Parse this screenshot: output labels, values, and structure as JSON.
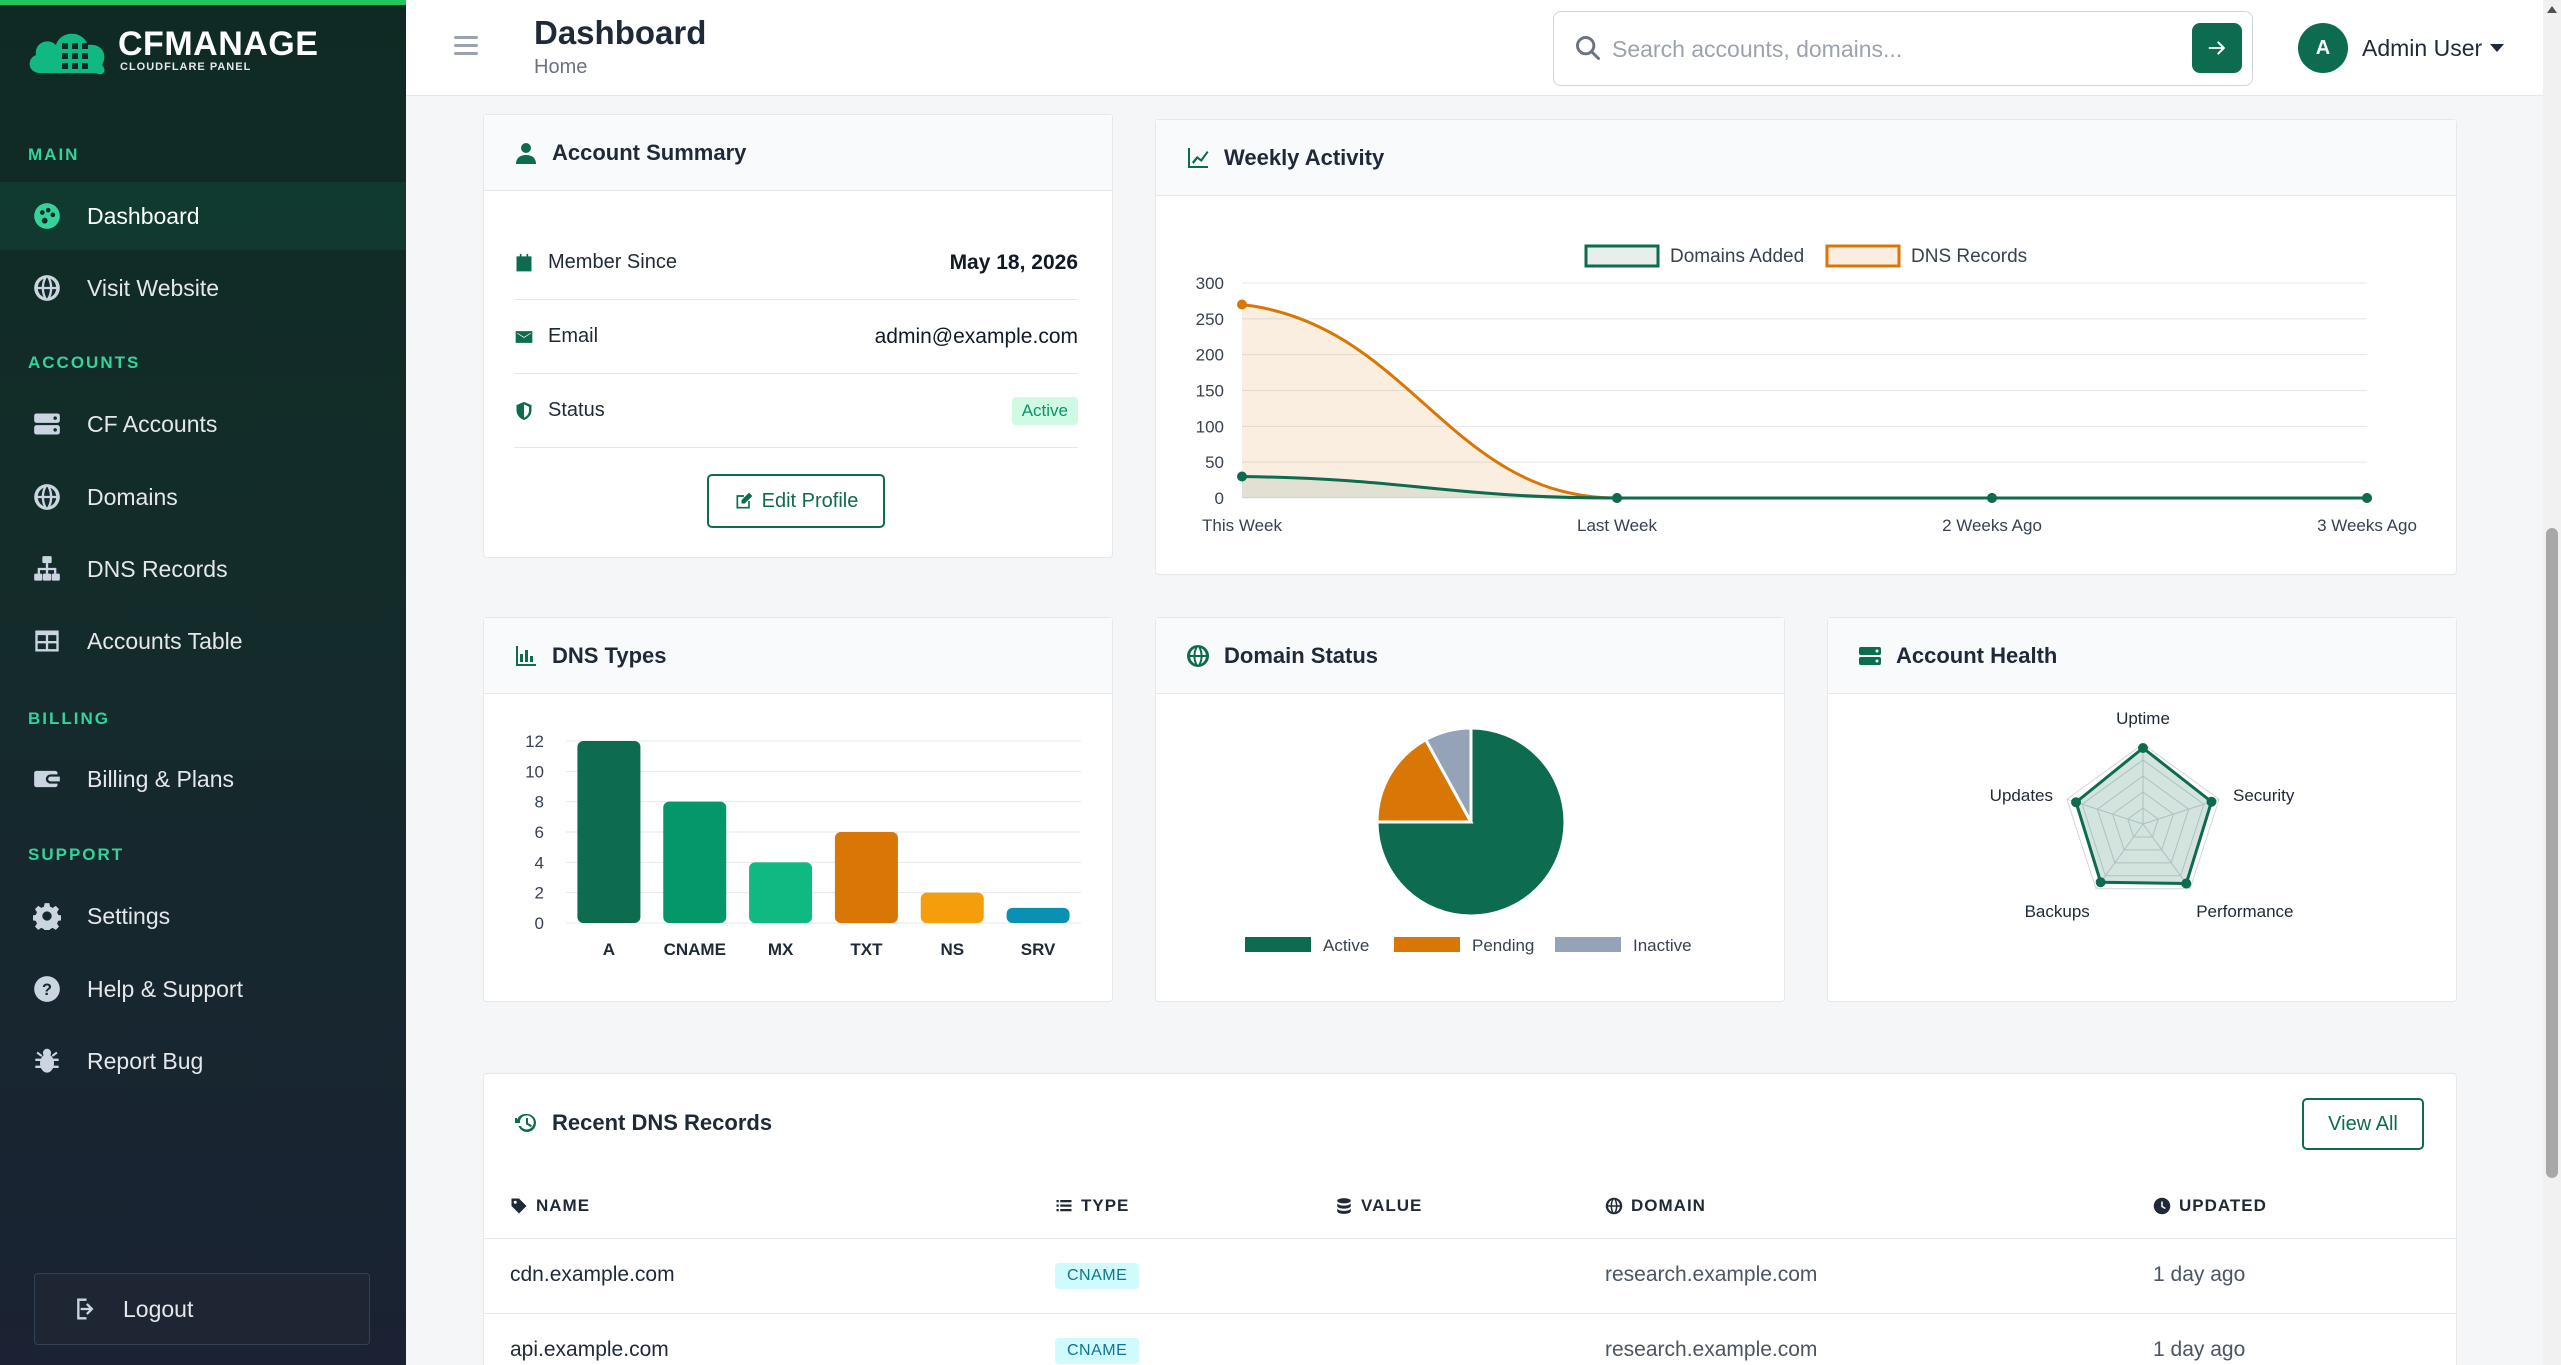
{
  "brand": {
    "title": "CFMANAGE",
    "subtitle": "CLOUDFLARE PANEL"
  },
  "sidebar": {
    "sections": [
      {
        "label": "MAIN"
      },
      {
        "label": "ACCOUNTS"
      },
      {
        "label": "BILLING"
      },
      {
        "label": "SUPPORT"
      }
    ],
    "items": [
      {
        "label": "Dashboard",
        "icon": "palette-icon",
        "active": true
      },
      {
        "label": "Visit Website",
        "icon": "globe-icon"
      },
      {
        "label": "CF Accounts",
        "icon": "server-icon"
      },
      {
        "label": "Domains",
        "icon": "globe-icon"
      },
      {
        "label": "DNS Records",
        "icon": "sitemap-icon"
      },
      {
        "label": "Accounts Table",
        "icon": "table-icon"
      },
      {
        "label": "Billing & Plans",
        "icon": "wallet-icon"
      },
      {
        "label": "Settings",
        "icon": "gear-icon"
      },
      {
        "label": "Help & Support",
        "icon": "question-icon"
      },
      {
        "label": "Report Bug",
        "icon": "bug-icon"
      }
    ],
    "logout": "Logout"
  },
  "header": {
    "title": "Dashboard",
    "breadcrumb": "Home",
    "search_placeholder": "Search accounts, domains...",
    "user_initial": "A",
    "user_name": "Admin User"
  },
  "account_summary": {
    "title": "Account Summary",
    "member_since_label": "Member Since",
    "member_since": "May 18, 2026",
    "email_label": "Email",
    "email": "admin@example.com",
    "status_label": "Status",
    "status": "Active",
    "edit_button": "Edit Profile"
  },
  "weekly_activity": {
    "title": "Weekly Activity"
  },
  "dns_types": {
    "title": "DNS Types"
  },
  "domain_status": {
    "title": "Domain Status"
  },
  "account_health": {
    "title": "Account Health"
  },
  "chart_data": [
    {
      "type": "line",
      "categories": [
        "This Week",
        "Last Week",
        "2 Weeks Ago",
        "3 Weeks Ago"
      ],
      "series": [
        {
          "name": "Domains Added",
          "values": [
            30,
            0,
            0,
            0
          ],
          "color": "#0d6b4f"
        },
        {
          "name": "DNS Records",
          "values": [
            270,
            0,
            0,
            0
          ],
          "color": "#d97706"
        }
      ],
      "yticks": [
        0,
        50,
        100,
        150,
        200,
        250,
        300
      ],
      "ylim": [
        0,
        300
      ],
      "legend": "top"
    },
    {
      "type": "bar",
      "categories": [
        "A",
        "CNAME",
        "MX",
        "TXT",
        "NS",
        "SRV"
      ],
      "values": [
        12,
        8,
        4,
        6,
        2,
        1
      ],
      "colors": [
        "#0d6b4f",
        "#059669",
        "#10b981",
        "#d97706",
        "#f59e0b",
        "#0891b2"
      ],
      "yticks": [
        0,
        2,
        4,
        6,
        8,
        10,
        12
      ],
      "ylim": [
        0,
        12
      ]
    },
    {
      "type": "pie",
      "labels": [
        "Active",
        "Pending",
        "Inactive"
      ],
      "values": [
        75,
        17,
        8
      ],
      "colors": [
        "#0d6b4f",
        "#d97706",
        "#94a3b8"
      ],
      "legend": "bottom"
    },
    {
      "type": "radar",
      "axes": [
        "Uptime",
        "Security",
        "Performance",
        "Backups",
        "Updates"
      ],
      "values": [
        95,
        90,
        92,
        90,
        88
      ],
      "max": 100,
      "color": "#0d6b4f"
    }
  ],
  "recent_dns": {
    "title": "Recent DNS Records",
    "view_all": "View All",
    "columns": [
      "NAME",
      "TYPE",
      "VALUE",
      "DOMAIN",
      "UPDATED"
    ],
    "rows": [
      {
        "name": "cdn.example.com",
        "type": "CNAME",
        "value": "",
        "domain": "research.example.com",
        "updated": "1 day ago"
      },
      {
        "name": "api.example.com",
        "type": "CNAME",
        "value": "",
        "domain": "research.example.com",
        "updated": "1 day ago"
      }
    ]
  }
}
